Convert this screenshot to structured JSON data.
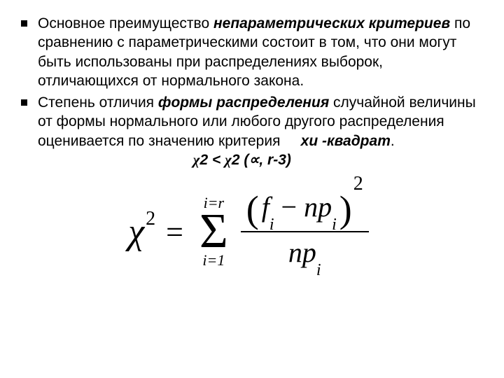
{
  "bullets": [
    {
      "pre": "Основное преимущество ",
      "bold1": "непараметрических критериев",
      "mid": " по сравнению с параметрическими состоит в том, что они могут быть использованы при распределениях выборок, отличающихся от нормального закона."
    },
    {
      "pre": "Степень отличия ",
      "bold1": "формы распределения",
      "mid": " случайной величины от формы нормального или любого другого распределения оценивается по значению критерия ",
      "bold2": "хи -квадрат",
      "tail": ".",
      "inequality_pre": "χ",
      "inequality": "2 < ",
      "inequality_chi2": "χ",
      "inequality_args": "2 (∝, r-3)"
    }
  ],
  "formula": {
    "chi": "χ",
    "sq": "2",
    "eq": "=",
    "sigma_top": "i=r",
    "sigma": "Σ",
    "sigma_bottom": "i=1",
    "num_lparen": "(",
    "num_f": "f",
    "num_i1": "i",
    "num_minus": " − ",
    "num_np": "np",
    "num_i2": "i",
    "num_rparen": ")",
    "num_sq": "2",
    "den_np": "np",
    "den_i": "i"
  },
  "styles": {
    "text_color": "#000000",
    "bg_color": "#ffffff",
    "bullet_size": 9,
    "text_fontsize": 21,
    "formula_fontsize": 44
  }
}
